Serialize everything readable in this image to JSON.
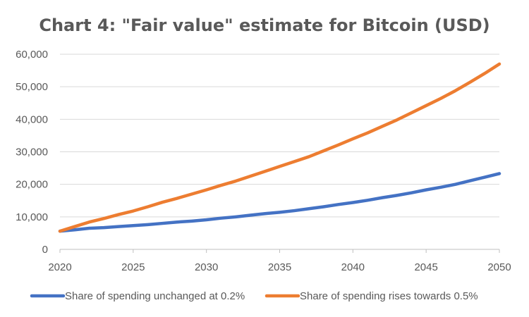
{
  "chart_data": {
    "type": "line",
    "title": "Chart 4: \"Fair value\" estimate for Bitcoin (USD)",
    "xlabel": "",
    "ylabel": "",
    "xlim": [
      2020,
      2050
    ],
    "ylim": [
      0,
      60000
    ],
    "x_ticks": [
      2020,
      2025,
      2030,
      2035,
      2040,
      2045,
      2050
    ],
    "x_tick_labels": [
      "2020",
      "2025",
      "2030",
      "2035",
      "2040",
      "2045",
      "2050"
    ],
    "y_ticks": [
      0,
      10000,
      20000,
      30000,
      40000,
      50000,
      60000
    ],
    "y_tick_labels": [
      "0",
      "10,000",
      "20,000",
      "30,000",
      "40,000",
      "50,000",
      "60,000"
    ],
    "grid": true,
    "legend_position": "bottom",
    "x": [
      2020,
      2021,
      2022,
      2023,
      2024,
      2025,
      2026,
      2027,
      2028,
      2029,
      2030,
      2031,
      2032,
      2033,
      2034,
      2035,
      2036,
      2037,
      2038,
      2039,
      2040,
      2041,
      2042,
      2043,
      2044,
      2045,
      2046,
      2047,
      2048,
      2049,
      2050
    ],
    "series": [
      {
        "name": "Share of spending unchanged at 0.2%",
        "color": "#4472c4",
        "values": [
          5600,
          6000,
          6500,
          6700,
          7000,
          7300,
          7600,
          8000,
          8400,
          8700,
          9100,
          9600,
          10000,
          10500,
          11000,
          11400,
          11900,
          12500,
          13100,
          13800,
          14400,
          15100,
          15900,
          16600,
          17400,
          18300,
          19100,
          20000,
          21100,
          22200,
          23300
        ]
      },
      {
        "name": "Share of spending rises towards 0.5%",
        "color": "#ed7d31",
        "values": [
          5600,
          7000,
          8400,
          9500,
          10700,
          11800,
          13100,
          14500,
          15700,
          17000,
          18300,
          19700,
          21000,
          22500,
          24000,
          25500,
          27000,
          28500,
          30300,
          32100,
          34000,
          35800,
          37800,
          39800,
          42000,
          44200,
          46400,
          48800,
          51400,
          54100,
          57000
        ]
      }
    ]
  }
}
